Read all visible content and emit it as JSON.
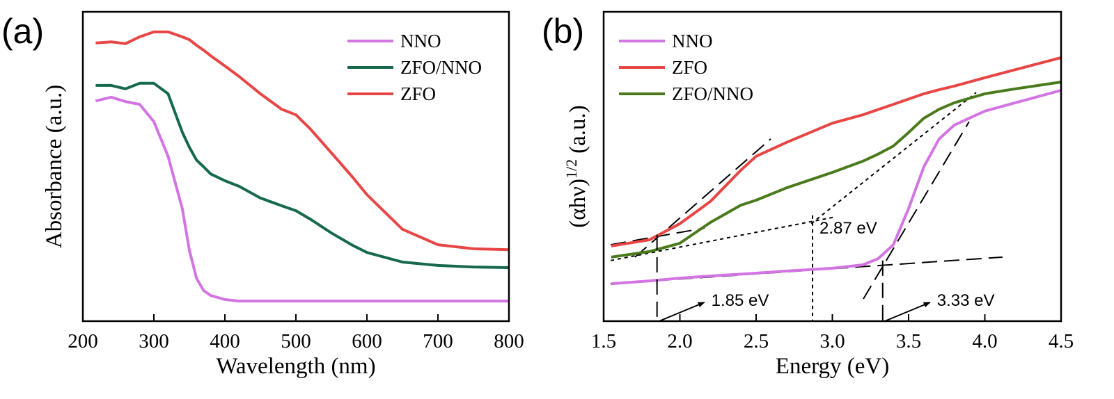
{
  "chart_data": [
    {
      "type": "line",
      "panel_label": "(a)",
      "xlabel": "Wavelength (nm)",
      "ylabel": "Absorbance (a.u.)",
      "xlim": [
        200,
        800
      ],
      "ylim": [
        0,
        1
      ],
      "xticks": [
        200,
        300,
        400,
        500,
        600,
        700,
        800
      ],
      "legend": "upper right",
      "x": [
        218,
        240,
        260,
        280,
        300,
        320,
        340,
        350,
        360,
        370,
        380,
        400,
        420,
        450,
        480,
        500,
        520,
        550,
        580,
        600,
        650,
        700,
        750,
        800
      ],
      "series": [
        {
          "name": "NNO",
          "color": "#d374e3",
          "values": [
            0.712,
            0.724,
            0.71,
            0.701,
            0.645,
            0.533,
            0.364,
            0.229,
            0.139,
            0.099,
            0.083,
            0.07,
            0.065,
            0.065,
            0.065,
            0.065,
            0.065,
            0.065,
            0.065,
            0.065,
            0.065,
            0.065,
            0.065,
            0.065
          ]
        },
        {
          "name": "ZFO/NNO",
          "color": "#16694a",
          "values": [
            0.762,
            0.762,
            0.751,
            0.769,
            0.769,
            0.735,
            0.611,
            0.562,
            0.521,
            0.499,
            0.476,
            0.454,
            0.436,
            0.398,
            0.373,
            0.357,
            0.33,
            0.285,
            0.245,
            0.222,
            0.191,
            0.18,
            0.175,
            0.173
          ]
        },
        {
          "name": "ZFO",
          "color": "#e84545",
          "values": [
            0.899,
            0.903,
            0.897,
            0.919,
            0.935,
            0.935,
            0.919,
            0.91,
            0.892,
            0.876,
            0.858,
            0.825,
            0.791,
            0.735,
            0.685,
            0.667,
            0.622,
            0.544,
            0.465,
            0.409,
            0.297,
            0.247,
            0.234,
            0.231
          ]
        }
      ]
    },
    {
      "type": "line",
      "panel_label": "(b)",
      "xlabel": "Energy (eV)",
      "ylabel": "(αhν)",
      "ylabel_superscript": "1/2",
      "ylabel_unit": "(a.u.)",
      "xlim": [
        1.5,
        4.5
      ],
      "ylim": [
        0,
        1
      ],
      "xticks": [
        1.5,
        {
          "value": 2,
          "label": "2.0"
        },
        2.5,
        {
          "value": 3,
          "label": "3.0"
        },
        3.5,
        {
          "value": 4,
          "label": "4.0"
        },
        4.5
      ],
      "legend": "upper left",
      "x": [
        1.55,
        1.8,
        2.0,
        2.2,
        2.4,
        2.5,
        2.7,
        3.0,
        3.2,
        3.3,
        3.4,
        3.5,
        3.6,
        3.7,
        3.8,
        4.0,
        4.2,
        4.5
      ],
      "series": [
        {
          "name": "NNO",
          "color": "#d374e3",
          "values": [
            0.121,
            0.13,
            0.139,
            0.146,
            0.152,
            0.155,
            0.162,
            0.171,
            0.182,
            0.202,
            0.247,
            0.364,
            0.499,
            0.589,
            0.634,
            0.679,
            0.706,
            0.746
          ]
        },
        {
          "name": "ZFO",
          "color": "#e84545",
          "values": [
            0.243,
            0.263,
            0.315,
            0.387,
            0.488,
            0.533,
            0.578,
            0.64,
            0.667,
            0.684,
            0.701,
            0.718,
            0.735,
            0.748,
            0.76,
            0.787,
            0.813,
            0.852
          ]
        },
        {
          "name": "ZFO/NNO",
          "color": "#4b7a1c",
          "values": [
            0.207,
            0.225,
            0.252,
            0.319,
            0.375,
            0.391,
            0.431,
            0.481,
            0.517,
            0.54,
            0.566,
            0.61,
            0.656,
            0.685,
            0.706,
            0.735,
            0.751,
            0.773
          ]
        }
      ],
      "reference_lines": [
        {
          "x": [
            1.705,
            2.596
          ],
          "values": [
            0.207,
            0.589
          ],
          "style": "dashed"
        },
        {
          "x": [
            1.546,
            2.162
          ],
          "values": [
            0.247,
            0.301
          ],
          "style": "dashed"
        },
        {
          "x": [
            1.546,
            4.116
          ],
          "values": [
            0.121,
            0.207
          ],
          "style": "dashed"
        },
        {
          "x": [
            3.203,
            3.897
          ],
          "values": [
            0.072,
            0.645
          ],
          "style": "dashed"
        },
        {
          "x": [
            1.546,
            3.021
          ],
          "values": [
            0.196,
            0.337
          ],
          "style": "dotted"
        },
        {
          "x": [
            2.861,
            3.943
          ],
          "values": [
            0.315,
            0.739
          ],
          "style": "dotted"
        }
      ],
      "markers": [
        {
          "x": 1.85,
          "y": 0.279,
          "label": "1.85 eV",
          "style": "dashed",
          "arrow": true
        },
        {
          "x": 2.87,
          "y": 0.342,
          "label": "2.87 eV",
          "style": "dotted",
          "arrow": false
        },
        {
          "x": 3.33,
          "y": 0.196,
          "label": "3.33 eV",
          "style": "dashed",
          "arrow": true
        }
      ]
    }
  ]
}
